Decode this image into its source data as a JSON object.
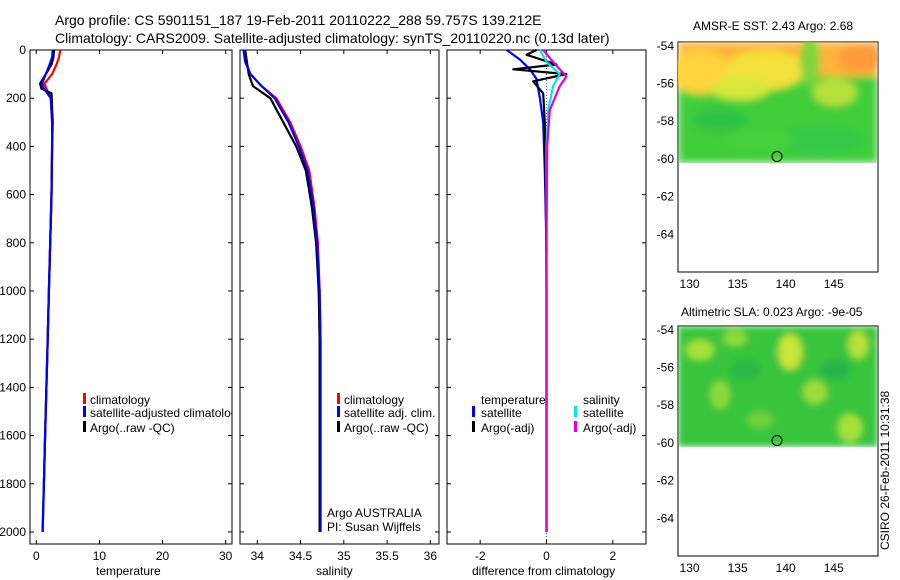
{
  "header": {
    "line1": "Argo profile: CS 5901151_187 19-Feb-2011 20110222_288 59.757S 139.212E",
    "line2": "Climatology: CARS2009. Satellite-adjusted climatology: synTS_20110220.nc (0.13d later)"
  },
  "colors": {
    "climatology": "#ff0000",
    "satellite": "#0000ff",
    "argo": "#000000",
    "sat_sal": "#00e5e5",
    "argo_sal": "#e000e0"
  },
  "chart_data": [
    {
      "type": "line",
      "name": "temperature",
      "xlabel": "temperature",
      "xlim": [
        -1,
        31
      ],
      "ylim": [
        0,
        2050
      ],
      "yticks": [
        0,
        200,
        400,
        600,
        800,
        1000,
        1200,
        1400,
        1600,
        1800,
        2000
      ],
      "xticks": [
        0,
        10,
        20,
        30
      ],
      "legend": {
        "placement": "lower-left",
        "labels": [
          "climatology",
          "satellite-adjusted climatology",
          "Argo(..raw -QC)"
        ]
      },
      "series": [
        {
          "name": "climatology",
          "color": "#ff0000",
          "x": [
            3.8,
            3.6,
            3.2,
            2.5,
            1.3,
            1.6,
            2.3,
            2.5,
            2.5,
            2.4,
            2.2,
            2.0,
            1.8,
            1.6,
            1.4,
            1.2
          ],
          "depth": [
            0,
            30,
            60,
            100,
            140,
            160,
            200,
            300,
            400,
            600,
            800,
            1000,
            1200,
            1400,
            1600,
            1800
          ]
        },
        {
          "name": "Argo",
          "color": "#000000",
          "x": [
            2.8,
            2.7,
            2.4,
            1.5,
            0.6,
            0.8,
            2.4,
            2.6,
            2.5,
            2.4,
            2.2,
            2.0,
            1.8,
            1.6,
            1.4,
            1.2,
            1.0
          ],
          "depth": [
            0,
            30,
            60,
            100,
            140,
            160,
            180,
            300,
            400,
            600,
            800,
            1000,
            1200,
            1400,
            1600,
            1800,
            2000
          ]
        },
        {
          "name": "satellite-adjusted climatology",
          "color": "#0000ff",
          "x": [
            2.6,
            2.5,
            2.1,
            1.5,
            0.9,
            1.2,
            2.3,
            2.5,
            2.5,
            2.4,
            2.2,
            2.0,
            1.8,
            1.6,
            1.4,
            1.2,
            1.0
          ],
          "depth": [
            0,
            30,
            60,
            100,
            140,
            160,
            200,
            300,
            400,
            600,
            800,
            1000,
            1200,
            1400,
            1600,
            1800,
            2000
          ]
        }
      ]
    },
    {
      "type": "line",
      "name": "salinity",
      "xlabel": "salinity",
      "xlim": [
        33.8,
        36.1
      ],
      "ylim": [
        0,
        2050
      ],
      "xticks": [
        34,
        34.5,
        35,
        35.5,
        36
      ],
      "xticklabels": [
        "34",
        "34.5",
        "35",
        "35.5",
        "36"
      ],
      "legend": {
        "placement": "lower-left",
        "labels": [
          "climatology",
          "satellite adj. clim.",
          "Argo(..raw -QC)"
        ]
      },
      "annotation": [
        "Argo AUSTRALIA",
        "PI: Susan Wijffels"
      ],
      "series": [
        {
          "name": "climatology",
          "color": "#ff0000",
          "x": [
            33.85,
            33.87,
            33.92,
            34.05,
            34.22,
            34.38,
            34.5,
            34.6,
            34.66,
            34.7,
            34.72,
            34.73,
            34.73,
            34.73,
            34.73,
            34.73
          ],
          "depth": [
            0,
            50,
            100,
            150,
            200,
            300,
            400,
            500,
            650,
            800,
            1000,
            1200,
            1400,
            1600,
            1800,
            2000
          ]
        },
        {
          "name": "Argo",
          "color": "#000000",
          "x": [
            33.86,
            33.88,
            33.9,
            33.95,
            34.15,
            34.3,
            34.45,
            34.56,
            34.63,
            34.68,
            34.71,
            34.72,
            34.72,
            34.72,
            34.72,
            34.72
          ],
          "depth": [
            0,
            50,
            100,
            150,
            200,
            300,
            400,
            500,
            650,
            800,
            1000,
            1200,
            1400,
            1600,
            1800,
            2000
          ]
        },
        {
          "name": "satellite adj. clim.",
          "color": "#0000ff",
          "x": [
            33.84,
            33.86,
            33.92,
            34.05,
            34.2,
            34.36,
            34.48,
            34.58,
            34.65,
            34.69,
            34.72,
            34.73,
            34.73,
            34.73,
            34.73,
            34.73
          ],
          "depth": [
            0,
            50,
            100,
            150,
            200,
            300,
            400,
            500,
            650,
            800,
            1000,
            1200,
            1400,
            1600,
            1800,
            2000
          ]
        }
      ]
    },
    {
      "type": "line",
      "name": "difference",
      "xlabel": "difference from climatology",
      "xlim": [
        -3,
        3
      ],
      "ylim": [
        0,
        2050
      ],
      "xticks": [
        -2,
        0,
        2
      ],
      "legend": {
        "placement": "lower-center",
        "temperature_title": "temperature",
        "salinity_title": "salinity",
        "labels": [
          "satellite",
          "Argo(-adj)",
          "satellite",
          "Argo(-adj)"
        ]
      },
      "series": [
        {
          "name": "temperature satellite",
          "color": "#0000ff",
          "x": [
            -1.2,
            -0.8,
            -0.5,
            -0.3,
            -0.2,
            -0.1,
            -0.05,
            0.0,
            0.0,
            0.0
          ],
          "depth": [
            0,
            40,
            80,
            120,
            200,
            300,
            500,
            800,
            1400,
            2000
          ]
        },
        {
          "name": "temperature Argo(-adj)",
          "color": "#000000",
          "x": [
            -0.3,
            -0.6,
            0.3,
            -1.0,
            0.6,
            -0.4,
            -0.1,
            -0.05,
            -0.02,
            0.0,
            0.0
          ],
          "depth": [
            0,
            20,
            60,
            80,
            100,
            130,
            180,
            300,
            600,
            1000,
            2000
          ]
        },
        {
          "name": "salinity satellite",
          "color": "#00e5e5",
          "x": [
            -0.2,
            0.0,
            0.4,
            0.2,
            0.05,
            0.0,
            0.0,
            0.0
          ],
          "depth": [
            0,
            50,
            100,
            150,
            250,
            400,
            800,
            2000
          ]
        },
        {
          "name": "salinity Argo(-adj)",
          "color": "#e000e0",
          "x": [
            -0.1,
            0.2,
            0.6,
            0.4,
            0.1,
            0.02,
            0.0,
            0.0
          ],
          "depth": [
            0,
            50,
            110,
            150,
            250,
            400,
            800,
            2000
          ]
        }
      ]
    },
    {
      "type": "heatmap",
      "name": "sst-map",
      "title": "AMSR-E SST: 2.43  Argo: 2.68",
      "xlim": [
        128.8,
        149.6
      ],
      "ylim": [
        -66,
        -53.8
      ],
      "xticks": [
        130,
        135,
        140,
        145
      ],
      "yticks": [
        -54,
        -56,
        -58,
        -60,
        -62,
        -64
      ],
      "argo_position": {
        "lon": 139.2,
        "lat": -59.76
      },
      "data_lat_range": [
        -60.1,
        -53.8
      ]
    },
    {
      "type": "heatmap",
      "name": "sla-map",
      "title": "Altimetric SLA: 0.023  Argo: -9e-05",
      "xlim": [
        128.8,
        149.6
      ],
      "ylim": [
        -66,
        -53.8
      ],
      "xticks": [
        130,
        135,
        140,
        145
      ],
      "yticks": [
        -54,
        -56,
        -58,
        -60,
        -62,
        -64
      ],
      "argo_position": {
        "lon": 139.2,
        "lat": -59.76
      },
      "data_lat_range": [
        -60.1,
        -53.8
      ]
    }
  ],
  "footer": {
    "stamp": "CSIRO 26-Feb-2011 10:31:38"
  }
}
